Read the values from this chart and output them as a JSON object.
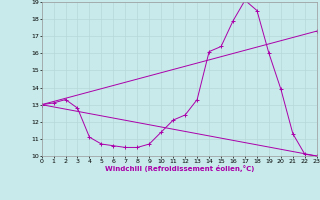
{
  "xlabel": "Windchill (Refroidissement éolien,°C)",
  "xlim": [
    0,
    23
  ],
  "ylim": [
    10,
    19
  ],
  "xticks": [
    0,
    1,
    2,
    3,
    4,
    5,
    6,
    7,
    8,
    9,
    10,
    11,
    12,
    13,
    14,
    15,
    16,
    17,
    18,
    19,
    20,
    21,
    22,
    23
  ],
  "yticks": [
    10,
    11,
    12,
    13,
    14,
    15,
    16,
    17,
    18,
    19
  ],
  "background_color": "#c8eaea",
  "line_color": "#aa00aa",
  "grid_color": "#b8d8d8",
  "line1_x": [
    0,
    1,
    2,
    3,
    4,
    5,
    6,
    7,
    8,
    9,
    10,
    11,
    12,
    13,
    14,
    15,
    16,
    17,
    18,
    19,
    20,
    21,
    22,
    23
  ],
  "line1_y": [
    13.0,
    13.1,
    13.3,
    12.8,
    11.1,
    10.7,
    10.6,
    10.5,
    10.5,
    10.7,
    11.4,
    12.1,
    12.4,
    13.3,
    16.1,
    16.4,
    17.9,
    19.1,
    18.5,
    16.0,
    13.9,
    11.3,
    10.1,
    10.0
  ],
  "line2_x": [
    0,
    23
  ],
  "line2_y": [
    13.0,
    17.3
  ],
  "line3_x": [
    0,
    23
  ],
  "line3_y": [
    13.0,
    10.0
  ],
  "tick_fontsize": 4.5,
  "xlabel_fontsize": 5.0
}
